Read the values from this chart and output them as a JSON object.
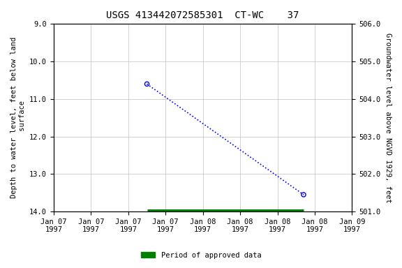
{
  "title": "USGS 413442072585301  CT-WC    37",
  "ylabel_left": "Depth to water level, feet below land\n surface",
  "ylabel_right": "Groundwater level above NGVD 1929, feet",
  "data_points_x": [
    2.5,
    6.7
  ],
  "data_points_y": [
    10.6,
    13.55
  ],
  "approved_bar_x_start": 2.5,
  "approved_bar_x_end": 6.7,
  "approved_bar_y": 14.0,
  "ylim_left": [
    9.0,
    14.0
  ],
  "ylim_right": [
    506.0,
    501.0
  ],
  "xlim": [
    0,
    8
  ],
  "xtick_positions": [
    0,
    1,
    2,
    3,
    4,
    5,
    6,
    7,
    8
  ],
  "xtick_labels": [
    "Jan 07\n1997",
    "Jan 07\n1997",
    "Jan 07\n1997",
    "Jan 07\n1997",
    "Jan 08\n1997",
    "Jan 08\n1997",
    "Jan 08\n1997",
    "Jan 08\n1997",
    "Jan 09\n1997"
  ],
  "yticks_left": [
    9.0,
    10.0,
    11.0,
    12.0,
    13.0,
    14.0
  ],
  "ytick_labels_left": [
    "9.0",
    "10.0",
    "11.0",
    "12.0",
    "13.0",
    "14.0"
  ],
  "yticks_right": [
    506.0,
    505.0,
    504.0,
    503.0,
    502.0,
    501.0
  ],
  "ytick_labels_right": [
    "506.0",
    "505.0",
    "504.0",
    "503.0",
    "502.0",
    "501.0"
  ],
  "line_color": "#0000FF",
  "marker_color": "#0000FF",
  "approved_bar_color": "#008000",
  "background_color": "#ffffff",
  "grid_color": "#c0c0c0",
  "title_fontsize": 10,
  "label_fontsize": 7.5,
  "tick_fontsize": 7.5,
  "legend_label": "Period of approved data"
}
